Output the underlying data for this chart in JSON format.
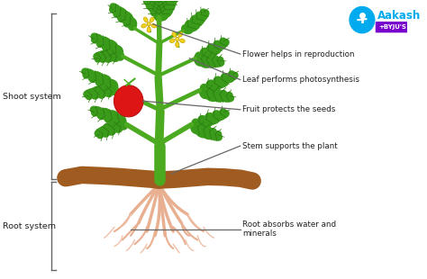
{
  "background_color": "#ffffff",
  "figure_width": 4.74,
  "figure_height": 3.1,
  "dpi": 100,
  "plant_stem_color": "#4caa20",
  "root_color": "#e8b090",
  "soil_color": "#a05c20",
  "fruit_color": "#dd1515",
  "flower_color": "#f0d020",
  "leaf_color": "#3a9a1a",
  "leaf_dark_color": "#2a7a10",
  "bracket_color": "#666666",
  "annotation_line_color": "#666666",
  "text_color": "#222222",
  "labels": {
    "shoot": "Shoot system",
    "root": "Root system",
    "flower": "Flower helps in reproduction",
    "leaf": "Leaf performs photosynthesis",
    "fruit": "Fruit protects the seeds",
    "stem": "Stem supports the plant",
    "root_fn": "Root absorbs water and\nminerals"
  },
  "logo_text_main": "Aakash",
  "logo_text_sub": "+BYJU'S",
  "logo_color_main": "#00aaee",
  "logo_color_sub": "#ffffff",
  "logo_bg_sub": "#7700cc"
}
